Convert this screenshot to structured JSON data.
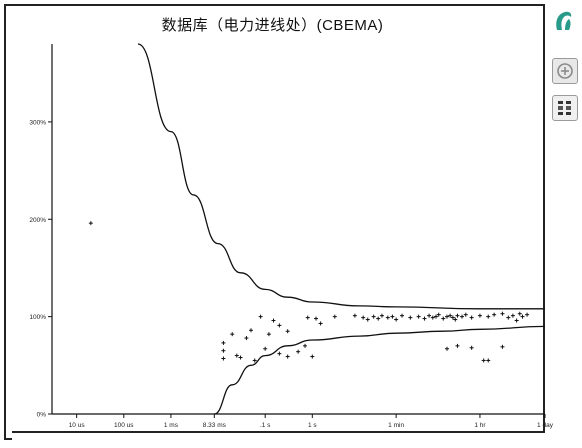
{
  "chart_data": {
    "type": "scatter",
    "title": "数据库（电力进线处）(CBEMA)",
    "xlabel": "",
    "ylabel": "",
    "x_scale": "log-time",
    "x_ticks": [
      "10 us",
      "100 us",
      "1 ms",
      "8.33 ms",
      ".1 s",
      "1 s",
      "1 min",
      "1 hr",
      "1 day"
    ],
    "y_ticks": [
      "0%",
      "100%",
      "200%",
      "300%"
    ],
    "ylim": [
      0,
      380
    ],
    "grid": false,
    "curves": [
      {
        "name": "",
        "points": [
          {
            "x": "0.0002 s",
            "y": 380
          },
          {
            "x": "0.001 s",
            "y": 290
          },
          {
            "x": "0.003 s",
            "y": 225
          },
          {
            "x": "0.01 s",
            "y": 175
          },
          {
            "x": "0.03 s",
            "y": 145
          },
          {
            "x": "0.1 s",
            "y": 128
          },
          {
            "x": "0.3 s",
            "y": 120
          },
          {
            "x": "1 s",
            "y": 115
          },
          {
            "x": "10 s",
            "y": 111
          },
          {
            "x": "1 min",
            "y": 110
          },
          {
            "x": "1 hr",
            "y": 108
          },
          {
            "x": "1 day",
            "y": 108
          }
        ]
      },
      {
        "name": "",
        "points": [
          {
            "x": "0.00833 s",
            "y": 0
          },
          {
            "x": "0.02 s",
            "y": 30
          },
          {
            "x": "0.05 s",
            "y": 50
          },
          {
            "x": "0.1 s",
            "y": 60
          },
          {
            "x": "0.3 s",
            "y": 70
          },
          {
            "x": "1 s",
            "y": 76
          },
          {
            "x": "10 s",
            "y": 80
          },
          {
            "x": "1 min",
            "y": 83
          },
          {
            "x": "10 min",
            "y": 85
          },
          {
            "x": "1 hr",
            "y": 87
          },
          {
            "x": "1 day",
            "y": 90
          }
        ]
      }
    ],
    "points": [
      {
        "x": "0.00002 s",
        "y": 196
      },
      {
        "x": "0.013 s",
        "y": 73
      },
      {
        "x": "0.013 s",
        "y": 65
      },
      {
        "x": "0.013 s",
        "y": 57
      },
      {
        "x": "0.02 s",
        "y": 82
      },
      {
        "x": "0.025 s",
        "y": 60
      },
      {
        "x": "0.03 s",
        "y": 58
      },
      {
        "x": "0.04 s",
        "y": 78
      },
      {
        "x": "0.05 s",
        "y": 86
      },
      {
        "x": "0.06 s",
        "y": 55
      },
      {
        "x": "0.08 s",
        "y": 100
      },
      {
        "x": "0.1 s",
        "y": 67
      },
      {
        "x": "0.12 s",
        "y": 82
      },
      {
        "x": "0.15 s",
        "y": 96
      },
      {
        "x": "0.2 s",
        "y": 91
      },
      {
        "x": "0.2 s",
        "y": 62
      },
      {
        "x": "0.3 s",
        "y": 59
      },
      {
        "x": "0.3 s",
        "y": 85
      },
      {
        "x": "0.5 s",
        "y": 64
      },
      {
        "x": "0.7 s",
        "y": 70
      },
      {
        "x": "0.8 s",
        "y": 99
      },
      {
        "x": "1 s",
        "y": 59
      },
      {
        "x": "1.2 s",
        "y": 98
      },
      {
        "x": "1.5 s",
        "y": 93
      },
      {
        "x": "3 s",
        "y": 100
      },
      {
        "x": "8 s",
        "y": 101
      },
      {
        "x": "12 s",
        "y": 99
      },
      {
        "x": "15 s",
        "y": 97
      },
      {
        "x": "20 s",
        "y": 100
      },
      {
        "x": "25 s",
        "y": 98
      },
      {
        "x": "30 s",
        "y": 101
      },
      {
        "x": "40 s",
        "y": 99
      },
      {
        "x": "50 s",
        "y": 100
      },
      {
        "x": "1 min",
        "y": 97
      },
      {
        "x": "80 s",
        "y": 101
      },
      {
        "x": "2 min",
        "y": 99
      },
      {
        "x": "3 min",
        "y": 100
      },
      {
        "x": "4 min",
        "y": 98
      },
      {
        "x": "5 min",
        "y": 101
      },
      {
        "x": "6 min",
        "y": 99
      },
      {
        "x": "7 min",
        "y": 100
      },
      {
        "x": "8 min",
        "y": 102
      },
      {
        "x": "10 min",
        "y": 98
      },
      {
        "x": "12 min",
        "y": 100
      },
      {
        "x": "14 min",
        "y": 101
      },
      {
        "x": "16 min",
        "y": 99
      },
      {
        "x": "18 min",
        "y": 97
      },
      {
        "x": "20 min",
        "y": 101
      },
      {
        "x": "25 min",
        "y": 100
      },
      {
        "x": "30 min",
        "y": 102
      },
      {
        "x": "40 min",
        "y": 99
      },
      {
        "x": "1 hr",
        "y": 101
      },
      {
        "x": "1.5 hr",
        "y": 100
      },
      {
        "x": "2 hr",
        "y": 102
      },
      {
        "x": "3 hr",
        "y": 103
      },
      {
        "x": "4 hr",
        "y": 99
      },
      {
        "x": "5 hr",
        "y": 101
      },
      {
        "x": "6 hr",
        "y": 96
      },
      {
        "x": "7 hr",
        "y": 103
      },
      {
        "x": "8 hr",
        "y": 100
      },
      {
        "x": "10 hr",
        "y": 102
      },
      {
        "x": "12 min",
        "y": 67
      },
      {
        "x": "20 min",
        "y": 70
      },
      {
        "x": "40 min",
        "y": 68
      },
      {
        "x": "1.2 hr",
        "y": 55
      },
      {
        "x": "1.5 hr",
        "y": 55
      },
      {
        "x": "3 hr",
        "y": 69
      }
    ],
    "colors": {
      "line": "#111111",
      "point": "#111111",
      "background": "#ffffff"
    }
  },
  "toolbar": {
    "icons": [
      "app-logo-icon",
      "zoom-in-icon",
      "grid-view-icon"
    ]
  }
}
